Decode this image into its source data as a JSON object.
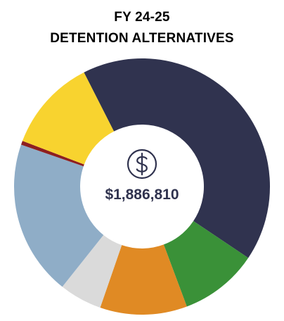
{
  "chart_data": {
    "type": "pie",
    "variant": "donut",
    "title": "FY 24-25",
    "subtitle": "DETENTION ALTERNATIVES",
    "center": {
      "icon": "dollar-circle-icon",
      "total_label": "$1,886,810"
    },
    "slices": [
      {
        "value": 41.9,
        "color": "#30334F"
      },
      {
        "value": 9.9,
        "color": "#3A9138"
      },
      {
        "value": 11.0,
        "color": "#E08A24"
      },
      {
        "value": 5.4,
        "color": "#DADADA"
      },
      {
        "value": 19.6,
        "color": "#8FADC7"
      },
      {
        "value": 0.5,
        "color": "#8E1F1F"
      },
      {
        "value": 11.7,
        "color": "#F8D32F"
      }
    ],
    "start_angle_deg": 333
  },
  "colors": {
    "title_text": "#000000",
    "center_text": "#30334F",
    "background": "#FFFFFF"
  }
}
